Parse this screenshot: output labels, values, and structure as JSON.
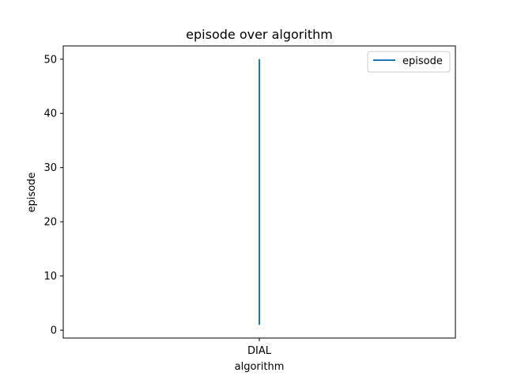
{
  "chart_data": {
    "type": "line",
    "title": "episode over algorithm",
    "xlabel": "algorithm",
    "ylabel": "episode",
    "categories": [
      "DIAL"
    ],
    "series": [
      {
        "name": "episode",
        "color": "#1f77b4",
        "points": [
          {
            "x": "DIAL",
            "y": 1
          },
          {
            "x": "DIAL",
            "y": 50
          }
        ]
      }
    ],
    "yticks": [
      0,
      10,
      20,
      30,
      40,
      50
    ],
    "ylim": [
      -1.45,
      52.45
    ],
    "grid": false,
    "legend_position": "top-right"
  }
}
